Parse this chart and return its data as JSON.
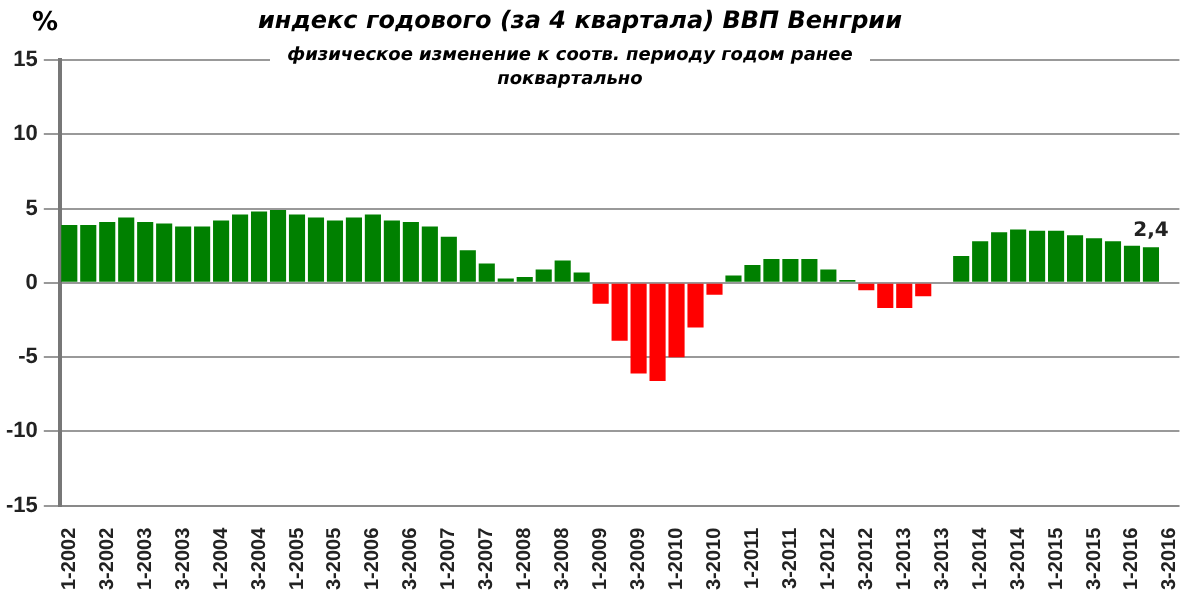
{
  "chart_data": {
    "type": "bar",
    "title": "индекс годового (за 4 квартала) ВВП Венгрии",
    "subtitle": "физическое изменение к соотв. периоду годом ранее поквартально",
    "ylabel": "%",
    "categories": [
      "1-2002",
      null,
      "3-2002",
      null,
      "1-2003",
      null,
      "3-2003",
      null,
      "1-2004",
      null,
      "3-2004",
      null,
      "1-2005",
      null,
      "3-2005",
      null,
      "1-2006",
      null,
      "3-2006",
      null,
      "1-2007",
      null,
      "3-2007",
      null,
      "1-2008",
      null,
      "3-2008",
      null,
      "1-2009",
      null,
      "3-2009",
      null,
      "1-2010",
      null,
      "3-2010",
      null,
      "1-2011",
      null,
      "3-2011",
      null,
      "1-2012",
      null,
      "3-2012",
      null,
      "1-2013",
      null,
      "3-2013",
      null,
      "1-2014",
      null,
      "3-2014",
      null,
      "1-2015",
      null,
      "3-2015",
      null,
      "1-2016",
      null,
      "3-2016"
    ],
    "values": [
      3.9,
      3.9,
      4.1,
      4.4,
      4.1,
      4.0,
      3.8,
      3.8,
      4.2,
      4.6,
      4.8,
      4.9,
      4.6,
      4.4,
      4.2,
      4.4,
      4.6,
      4.2,
      4.1,
      3.8,
      3.1,
      2.2,
      1.3,
      0.3,
      0.4,
      0.9,
      1.5,
      0.7,
      -1.4,
      -3.9,
      -6.1,
      -6.6,
      -5.0,
      -3.0,
      -0.8,
      0.5,
      1.2,
      1.6,
      1.6,
      1.6,
      0.9,
      0.2,
      -0.5,
      -1.7,
      -1.7,
      -0.9,
      0,
      1.8,
      2.8,
      3.4,
      3.6,
      3.5,
      3.5,
      3.2,
      3.0,
      2.8,
      2.5,
      2.4,
      null
    ],
    "colors": [
      "#008000",
      "#008000",
      "#008000",
      "#008000",
      "#008000",
      "#008000",
      "#008000",
      "#008000",
      "#008000",
      "#008000",
      "#008000",
      "#008000",
      "#008000",
      "#008000",
      "#008000",
      "#008000",
      "#008000",
      "#008000",
      "#008000",
      "#008000",
      "#008000",
      "#008000",
      "#008000",
      "#008000",
      "#008000",
      "#008000",
      "#008000",
      "#008000",
      "#ff0000",
      "#ff0000",
      "#ff0000",
      "#ff0000",
      "#ff0000",
      "#ff0000",
      "#ff0000",
      "#008000",
      "#008000",
      "#008000",
      "#008000",
      "#008000",
      "#008000",
      "#008000",
      "#ff0000",
      "#ff0000",
      "#ff0000",
      "#ff0000",
      "#008000",
      "#008000",
      "#008000",
      "#008000",
      "#008000",
      "#008000",
      "#008000",
      "#008000",
      "#008000",
      "#008000",
      "#008000",
      "#008000",
      "#008000"
    ],
    "value_labels": [
      null,
      null,
      null,
      null,
      null,
      null,
      null,
      null,
      null,
      null,
      null,
      null,
      null,
      null,
      null,
      null,
      null,
      null,
      null,
      null,
      null,
      null,
      null,
      null,
      null,
      null,
      null,
      null,
      null,
      null,
      null,
      null,
      null,
      null,
      null,
      null,
      null,
      null,
      null,
      null,
      null,
      null,
      null,
      null,
      null,
      null,
      null,
      null,
      null,
      null,
      null,
      null,
      null,
      null,
      null,
      null,
      null,
      "2,4",
      null
    ],
    "ylim": [
      -15,
      15
    ],
    "yticks": [
      -15,
      -10,
      -5,
      0,
      5,
      10,
      15
    ],
    "grid": "y",
    "legend": false
  }
}
